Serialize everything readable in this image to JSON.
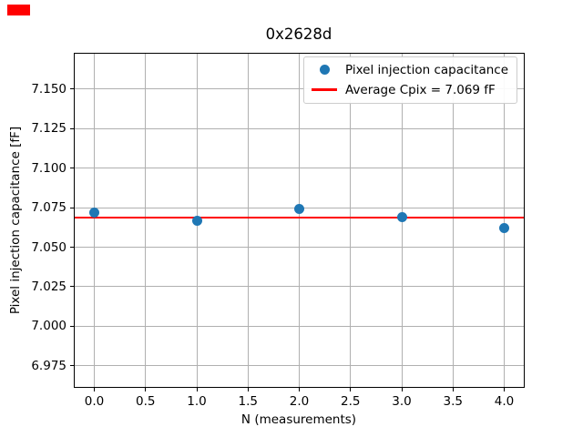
{
  "chart_data": {
    "type": "scatter",
    "title": "0x2628d",
    "xlabel": "N (measurements)",
    "ylabel": "Pixel injection capacitance [fF]",
    "x": [
      0,
      1,
      2,
      3,
      4
    ],
    "series": [
      {
        "name": "Pixel injection capacitance",
        "type": "scatter",
        "color": "#1f77b4",
        "values": [
          7.072,
          7.067,
          7.074,
          7.069,
          7.062
        ]
      },
      {
        "name": "Average Cpix = 7.069 fF",
        "type": "hline",
        "color": "#ff0000",
        "value": 7.069
      }
    ],
    "average_value": 7.069,
    "xlim": [
      -0.2,
      4.2
    ],
    "ylim": [
      6.961,
      7.173
    ],
    "xticks": [
      0,
      0.5,
      1,
      1.5,
      2,
      2.5,
      3,
      3.5,
      4
    ],
    "xtick_labels": [
      "0.0",
      "0.5",
      "1.0",
      "1.5",
      "2.0",
      "2.5",
      "3.0",
      "3.5",
      "4.0"
    ],
    "yticks": [
      7.15,
      7.125,
      7.1,
      7.075,
      7.05,
      7.025,
      7.0,
      6.975
    ],
    "ytick_labels": [
      "7.150",
      "7.125",
      "7.100",
      "7.075",
      "7.050",
      "7.025",
      "7.000",
      "6.975"
    ],
    "grid": true,
    "grid_color": "#b0b0b0",
    "legend": {
      "position": "upper right",
      "entries": [
        {
          "label": "Pixel injection capacitance",
          "marker": "circle",
          "color": "#1f77b4"
        },
        {
          "label": "Average Cpix = 7.069 fF",
          "marker": "line",
          "color": "#ff0000"
        }
      ]
    }
  },
  "overlay": {
    "red_marker": {
      "color": "#ff0000"
    }
  }
}
